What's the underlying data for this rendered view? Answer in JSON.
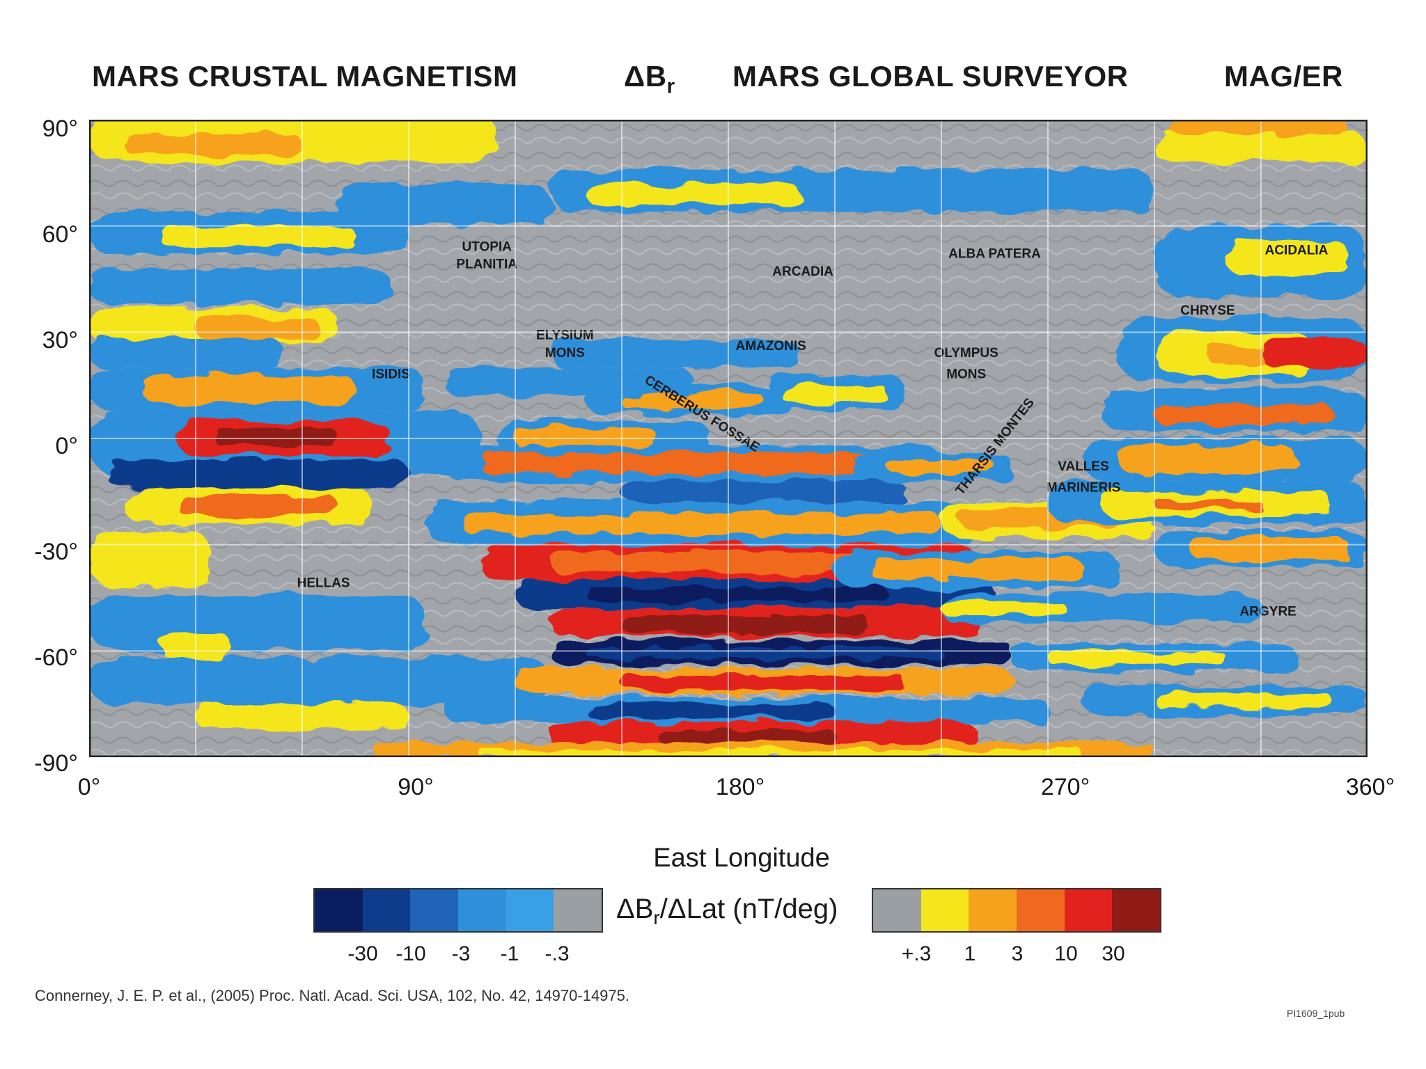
{
  "header": {
    "left_title": "MARS CRUSTAL MAGNETISM",
    "symbol_main": "ΔB",
    "symbol_sub": "r",
    "mission": "MARS GLOBAL SURVEYOR",
    "instrument": "MAG/ER"
  },
  "map": {
    "latitude_ticks": [
      "90°",
      "60°",
      "30°",
      "0°",
      "-30°",
      "-60°",
      "-90°"
    ],
    "longitude_ticks": [
      "0°",
      "90°",
      "180°",
      "270°",
      "360°"
    ],
    "xlabel": "East Longitude",
    "lon_range": [
      0,
      360
    ],
    "lat_range": [
      -90,
      90
    ],
    "grid": "on",
    "region_labels": [
      {
        "text": "UTOPIA",
        "lon": 112,
        "lat": 53
      },
      {
        "text": "PLANITIA",
        "lon": 112,
        "lat": 48
      },
      {
        "text": "ARCADIA",
        "lon": 201,
        "lat": 46
      },
      {
        "text": "ALBA PATERA",
        "lon": 255,
        "lat": 51
      },
      {
        "text": "ACIDALIA",
        "lon": 340,
        "lat": 52
      },
      {
        "text": "CHRYSE",
        "lon": 315,
        "lat": 35
      },
      {
        "text": "ELYSIUM",
        "lon": 134,
        "lat": 28
      },
      {
        "text": "MONS",
        "lon": 134,
        "lat": 23
      },
      {
        "text": "AMAZONIS",
        "lon": 192,
        "lat": 25
      },
      {
        "text": "OLYMPUS",
        "lon": 247,
        "lat": 23
      },
      {
        "text": "MONS",
        "lon": 247,
        "lat": 17
      },
      {
        "text": "ISIDIS",
        "lon": 85,
        "lat": 17
      },
      {
        "text": "VALLES",
        "lon": 280,
        "lat": -9
      },
      {
        "text": "MARINERIS",
        "lon": 280,
        "lat": -15
      },
      {
        "text": "HELLAS",
        "lon": 66,
        "lat": -42
      },
      {
        "text": "ARGYRE",
        "lon": 332,
        "lat": -50
      }
    ],
    "rotated_labels": [
      {
        "text": "CERBERUS FOSSAE",
        "lon": 172,
        "lat": 6,
        "angle": 32
      },
      {
        "text": "THARSIS MONTES",
        "lon": 256,
        "lat": -3,
        "angle": -52
      }
    ]
  },
  "colorbar": {
    "title_main": "ΔB",
    "title_sub": "r",
    "title_rest": "/ΔLat (nT/deg)",
    "negative_ticks": [
      "-30",
      "-10",
      "-3",
      "-1",
      "-.3"
    ],
    "positive_ticks": [
      "+.3",
      "1",
      "3",
      "10",
      "30"
    ],
    "negative_colors": [
      "#0a1d5e",
      "#0f3b8c",
      "#1f64b8",
      "#2f8fdb",
      "#3aa0e6",
      "#9a9fa4"
    ],
    "positive_colors": [
      "#9a9fa4",
      "#f5e61c",
      "#f7a21b",
      "#ef6a1e",
      "#e2231d",
      "#8f1a16"
    ]
  },
  "citation": "Connerney, J. E. P. et al., (2005) Proc. Natl. Acad. Sci. USA, 102, No. 42, 14970-14975.",
  "figure_id": "PI1609_1pub"
}
